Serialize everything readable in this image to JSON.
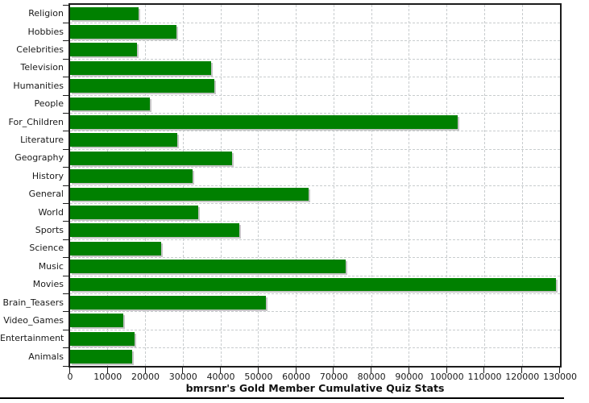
{
  "chart_data": {
    "type": "bar",
    "orientation": "horizontal",
    "title": "bmrsnr's Gold Member Cumulative Quiz Stats",
    "xlabel": "",
    "ylabel": "",
    "categories": [
      "Religion",
      "Hobbies",
      "Celebrities",
      "Television",
      "Humanities",
      "People",
      "For_Children",
      "Literature",
      "Geography",
      "History",
      "General",
      "World",
      "Sports",
      "Science",
      "Music",
      "Movies",
      "Brain_Teasers",
      "Video_Games",
      "Entertainment",
      "Animals"
    ],
    "values": [
      18200,
      28300,
      17700,
      37500,
      38300,
      21200,
      102900,
      28500,
      43000,
      32400,
      63200,
      34000,
      44800,
      24200,
      73100,
      129000,
      51900,
      14200,
      17200,
      16500
    ],
    "xlim": [
      0,
      130000
    ],
    "x_ticks": [
      0,
      10000,
      20000,
      30000,
      40000,
      50000,
      60000,
      70000,
      80000,
      90000,
      100000,
      110000,
      120000,
      130000
    ],
    "grid": true,
    "legend": false,
    "bar_color": "#008000",
    "bar_shadow_color": "#c6c6c6",
    "gridline_color": "#c8ccce",
    "axis_color": "#1c1c1c",
    "text_color": "#1a1a1a"
  }
}
